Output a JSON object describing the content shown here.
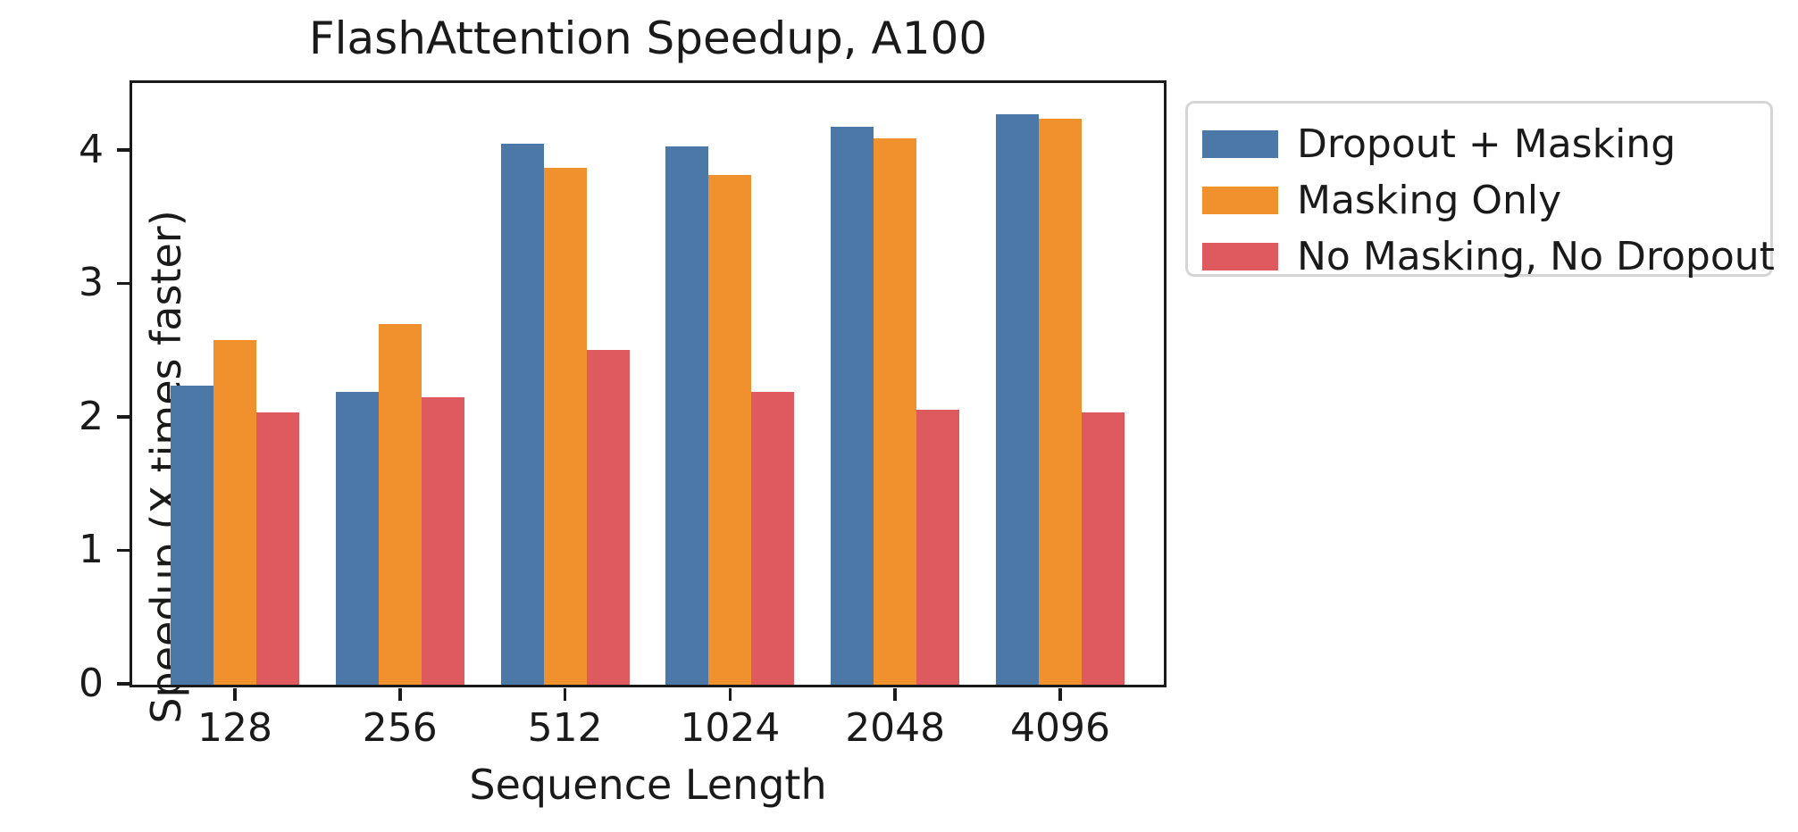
{
  "chart_data": {
    "type": "bar",
    "title": "FlashAttention Speedup, A100",
    "xlabel": "Sequence Length",
    "ylabel": "Speedup (X times faster)",
    "categories": [
      "128",
      "256",
      "512",
      "1024",
      "2048",
      "4096"
    ],
    "series": [
      {
        "name": "Dropout + Masking",
        "color": "#4c78a8",
        "values": [
          2.24,
          2.19,
          4.05,
          4.03,
          4.18,
          4.27
        ]
      },
      {
        "name": "Masking Only",
        "color": "#f0912d",
        "values": [
          2.58,
          2.7,
          3.87,
          3.82,
          4.09,
          4.24
        ]
      },
      {
        "name": "No Masking, No Dropout",
        "color": "#de5a5e",
        "values": [
          2.04,
          2.15,
          2.51,
          2.19,
          2.06,
          2.04
        ]
      }
    ],
    "ylim": [
      0,
      4.5
    ],
    "yticks": [
      0,
      1,
      2,
      3,
      4
    ],
    "grid": false,
    "legend_position": "outside-right",
    "axis_color": "#1a1a1a",
    "legend_border_color": "#d5d5d5"
  }
}
